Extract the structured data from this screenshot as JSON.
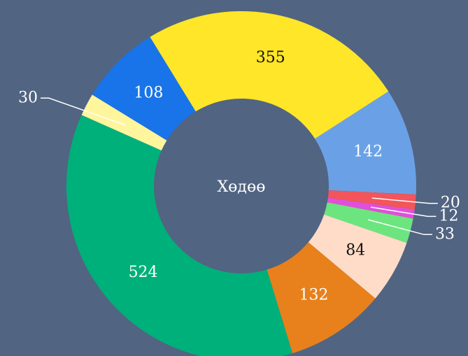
{
  "chart_data": {
    "type": "donut",
    "center_label": "Хөдөө",
    "values": [
      355,
      142,
      20,
      12,
      33,
      84,
      132,
      524,
      30,
      108
    ],
    "colors": [
      "#ffe629",
      "#6aa1e6",
      "#f2555a",
      "#e14fd9",
      "#6de57f",
      "#ffdcc8",
      "#e8801c",
      "#00b07a",
      "#fff59d",
      "#1874e8"
    ]
  }
}
